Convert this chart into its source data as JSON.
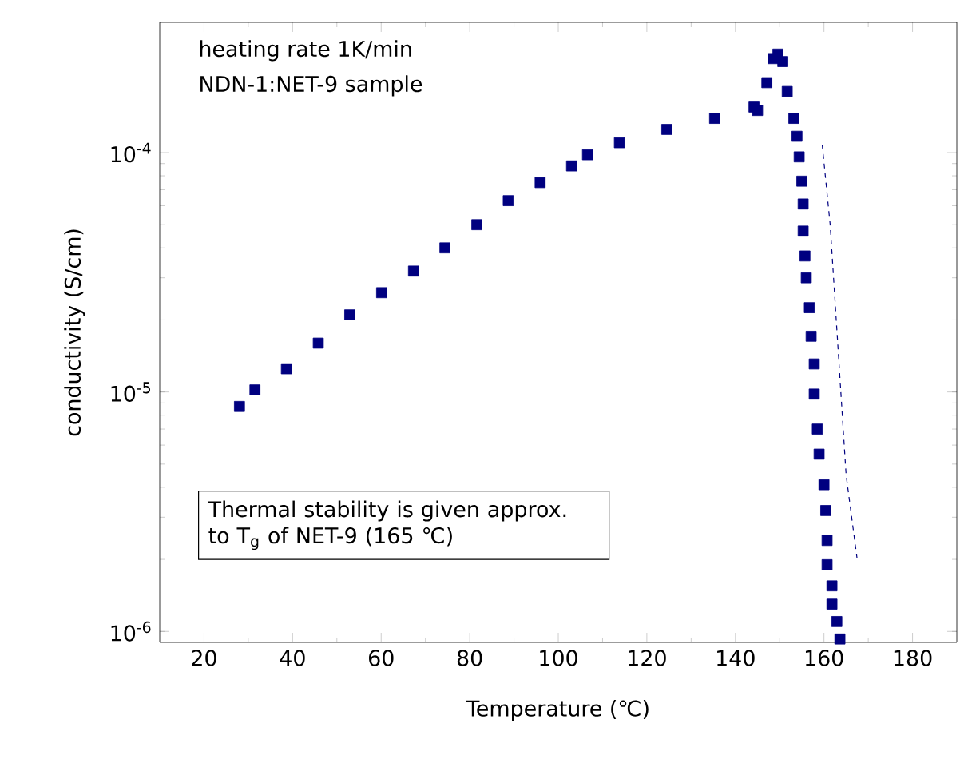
{
  "chart_data": {
    "type": "scatter",
    "xlabel": "Temperature (℃)",
    "ylabel": "conductivity (S/cm)",
    "annotations": [
      "heating rate 1K/min",
      "NDN-1:NET-9 sample",
      "Thermal stability is given approx. to T$_{g}$ of NET-9 (165 ℃)"
    ],
    "log": "y",
    "grid": false,
    "xlim": [
      10,
      190
    ],
    "xticks": [
      20,
      40,
      60,
      80,
      100,
      120,
      140,
      160,
      180
    ],
    "ylim": [
      9e-07,
      0.00035
    ],
    "yticks": [
      {
        "value": 1e-06,
        "label": "10$^{-6}$"
      },
      {
        "value": 1e-05,
        "label": "10$^{-5}$"
      },
      {
        "value": 0.0001,
        "label": "10$^{-4}$"
      }
    ],
    "series": [
      {
        "color": "#000080",
        "marker": "square",
        "x": [
          28,
          31.5,
          38.6,
          45.8,
          52.9,
          60.1,
          67.3,
          74.4,
          81.6,
          88.7,
          95.9,
          103,
          106.6,
          113.8,
          124.5,
          135.3,
          144.2,
          145,
          147.1,
          148.5,
          149.6,
          150.7,
          151.7,
          153.2,
          153.9,
          154.4,
          155,
          155.3,
          155.3,
          155.7,
          156,
          156.7,
          157.1,
          157.8,
          157.8,
          158.5,
          158.9,
          160,
          160.4,
          160.7,
          160.7,
          161.8,
          161.8,
          162.9,
          163.6
        ],
        "values": [
          8.7e-06,
          1.02e-05,
          1.25e-05,
          1.6e-05,
          2.1e-05,
          2.6e-05,
          3.2e-05,
          4e-05,
          5e-05,
          6.3e-05,
          7.5e-05,
          8.8e-05,
          9.8e-05,
          0.00011,
          0.000125,
          0.000139,
          0.000155,
          0.00015,
          0.000196,
          0.000247,
          0.000258,
          0.00024,
          0.00018,
          0.000139,
          0.000117,
          9.6e-05,
          7.6e-05,
          6.1e-05,
          4.7e-05,
          3.7e-05,
          3e-05,
          2.25e-05,
          1.71e-05,
          1.31e-05,
          9.8e-06,
          7e-06,
          5.5e-06,
          4.1e-06,
          3.2e-06,
          2.4e-06,
          1.9e-06,
          1.55e-06,
          1.3e-06,
          1.1e-06,
          9.3e-07
        ]
      },
      {
        "type": "line",
        "color": "#000080",
        "marker": "none",
        "line_style": "dashed",
        "x": [
          159.6,
          161.4,
          165,
          167.5
        ],
        "values": [
          0.000108,
          5e-05,
          4.5e-06,
          2e-06
        ]
      }
    ]
  }
}
